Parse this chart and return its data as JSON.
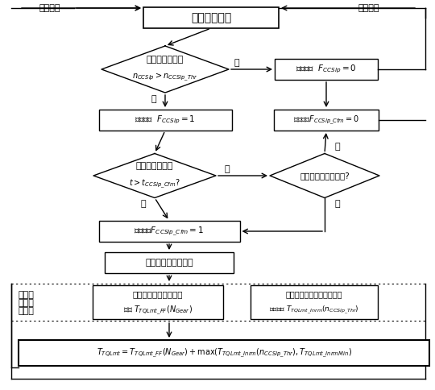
{
  "bg_color": "#ffffff",
  "title_text": "固定档位行驶",
  "top_label_left": "下一时刻",
  "top_label_right": "下一时刻",
  "d1_l1": "离合器滑差超限",
  "d1_l2": "$n_{CCSlp} > n_{CCSlp\\_Thr}$",
  "d1_no": "否",
  "d1_yes": "是",
  "box_slp1": "滑摩置位  $F_{CCSlp}=1$",
  "box_slp0": "滑摩置位  $F_{CCSlp}=0$",
  "box_cfm0": "滑摩确认$F_{CCSlp\\_Cfm}=0$",
  "d2_l1": "离合器滑摩持续",
  "d2_l2": "$t > t_{CCSlp\\_Cfm}$?",
  "d2_no": "否",
  "d2_yes": "是",
  "d3_l1": "上一时刻是否为滑摩?",
  "d3_no": "否",
  "d3_yes": "是",
  "box_cfm1": "滑摩确认$F_{CCSlp\\_Cfm}=1$",
  "box_act": "激活发动机转矩限制",
  "lbl_left1": "发动机",
  "lbl_left2": "转矩限",
  "lbl_left3": "制计算",
  "ff_l1": "基于档位的前馈限制转",
  "ff_l2": "矩值 $T_{TQLmt\\_FF}(N_{Gear})$",
  "fb_l1": "基于目标滑差的闭环限制转",
  "fb_l2": "矩计算值 $T_{TQLmt\\_Inrm}(n_{CCSlp\\_Thr})$",
  "formula": "$T_{TQLmt}=T_{TQLmt\\_FF}\\left(N_{Gear}\\right)+\\max(T_{TQLmt\\_Inrm}\\left(n_{CCSlp\\_Thr}\\right),T_{TQLmt\\_InrmMin})$"
}
